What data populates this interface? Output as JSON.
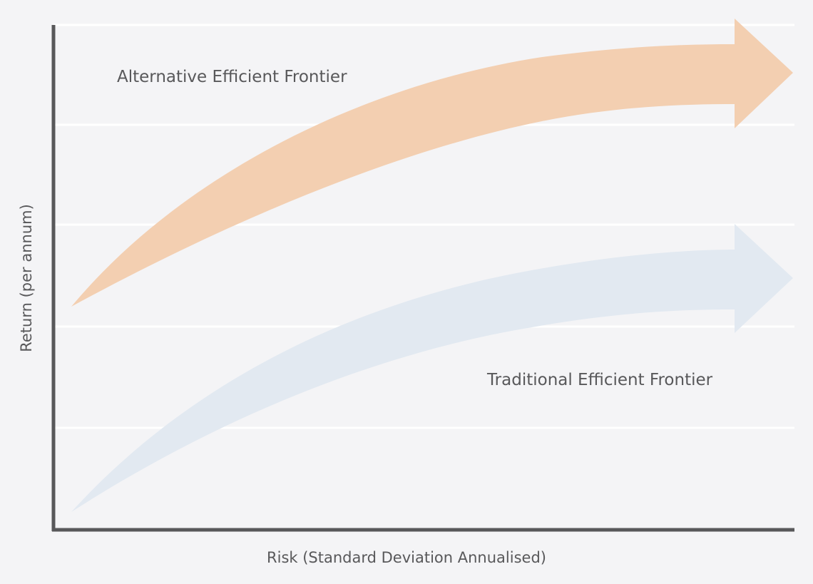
{
  "chart_data": {
    "type": "line",
    "title": "",
    "xlabel": "Risk (Standard Deviation Annualised)",
    "ylabel": "Return (per annum)",
    "x_ticks_shown": false,
    "y_ticks_shown": false,
    "grid": "horizontal",
    "gridline_count": 5,
    "series": [
      {
        "label_on_chart": "Alternative Efficient Frontier",
        "color": "#f3cfb1",
        "shape": "curved arrow"
      },
      {
        "label_on_chart": "Traditional Efficient Frontier",
        "color": "#e2e9f1",
        "shape": "curved arrow"
      }
    ]
  },
  "colors": {
    "background": "#f4f4f6",
    "axis": "#58585a",
    "gridline": "#ffffff",
    "text": "#58585a"
  }
}
